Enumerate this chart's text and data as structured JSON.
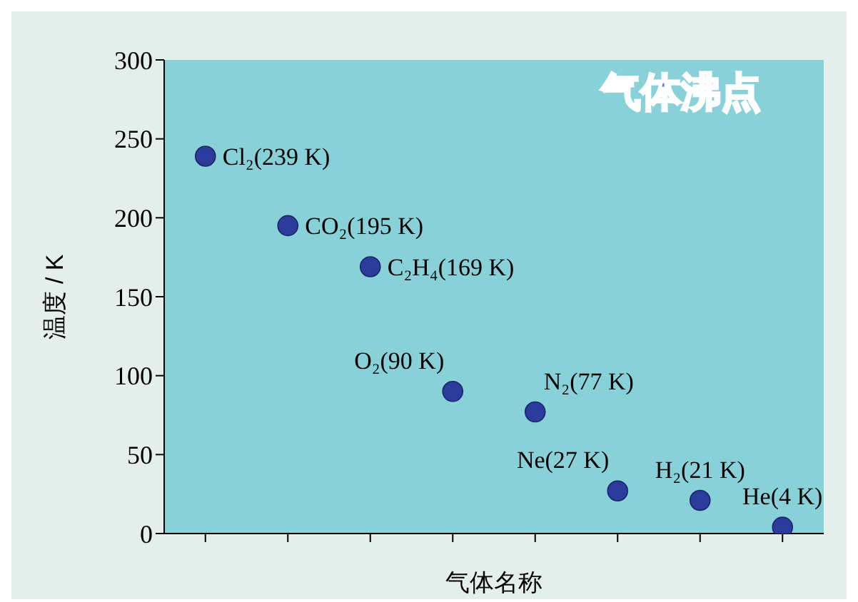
{
  "chart_data": {
    "type": "scatter",
    "title": "气体沸点",
    "xlabel": "气体名称",
    "ylabel": "温度 / K",
    "categories": [
      null,
      null,
      null,
      null,
      null,
      null,
      null,
      null
    ],
    "series": [
      {
        "color": "#2b3c9c",
        "values": [
          239,
          195,
          169,
          90,
          77,
          27,
          21,
          4
        ],
        "value_labels": [
          "Cl₂(239 K)",
          "CO₂(195 K)",
          "C₂H₄(169 K)",
          "O₂(90 K)",
          "N₂(77 K)",
          "Ne(27 K)",
          "H₂(21 K)",
          "He(4 K)"
        ]
      }
    ],
    "ylim": [
      0,
      300
    ],
    "yticks": [
      0,
      50,
      100,
      150,
      200,
      250,
      300
    ],
    "marker": "circle",
    "grid": false,
    "legend": false
  }
}
